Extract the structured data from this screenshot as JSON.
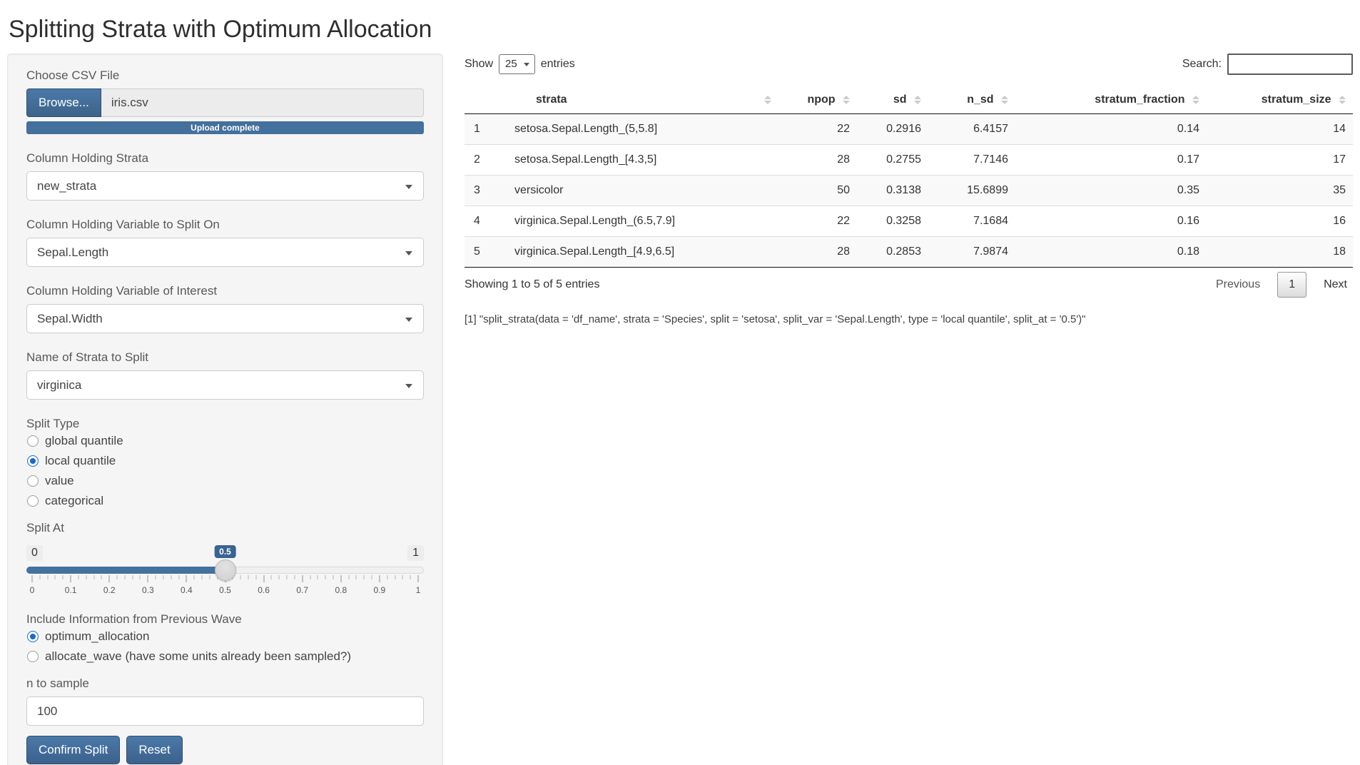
{
  "title": "Splitting Strata with Optimum Allocation",
  "colors": {
    "primary_blue": "#446e9b",
    "slider_fill_blue": "#44719f",
    "radio_selected_blue": "#1868d3",
    "table_stripe": "#f9f9f9"
  },
  "sidebar": {
    "file_input": {
      "label": "Choose CSV File",
      "browse_label": "Browse...",
      "filename": "iris.csv",
      "progress_text": "Upload complete"
    },
    "strata_select": {
      "label": "Column Holding Strata",
      "value": "new_strata"
    },
    "split_var_select": {
      "label": "Column Holding Variable to Split On",
      "value": "Sepal.Length"
    },
    "interest_select": {
      "label": "Column Holding Variable of Interest",
      "value": "Sepal.Width"
    },
    "strata_name_select": {
      "label": "Name of Strata to Split",
      "value": "virginica"
    },
    "split_type": {
      "label": "Split Type",
      "options": [
        "global quantile",
        "local quantile",
        "value",
        "categorical"
      ],
      "selected": "local quantile"
    },
    "split_at": {
      "label": "Split At",
      "min_label": "0",
      "max_label": "1",
      "value_label": "0.5",
      "value": 0.5,
      "tick_labels": [
        "0",
        "0.1",
        "0.2",
        "0.3",
        "0.4",
        "0.5",
        "0.6",
        "0.7",
        "0.8",
        "0.9",
        "1"
      ]
    },
    "previous_wave": {
      "label": "Include Information from Previous Wave",
      "options": [
        "optimum_allocation",
        "allocate_wave (have some units already been sampled?)"
      ],
      "selected": "optimum_allocation"
    },
    "n_to_sample": {
      "label": "n to sample",
      "value": "100"
    },
    "confirm_button": "Confirm Split",
    "reset_button": "Reset"
  },
  "table_controls": {
    "show_label": "Show",
    "page_length": "25",
    "entries_label": "entries",
    "search_label": "Search:",
    "search_value": ""
  },
  "table": {
    "columns": [
      "strata",
      "npop",
      "sd",
      "n_sd",
      "stratum_fraction",
      "stratum_size"
    ],
    "rows": [
      {
        "row_name": "1",
        "cells": [
          "setosa.Sepal.Length_(5,5.8]",
          "22",
          "0.2916",
          "6.4157",
          "0.14",
          "14"
        ]
      },
      {
        "row_name": "2",
        "cells": [
          "setosa.Sepal.Length_[4.3,5]",
          "28",
          "0.2755",
          "7.7146",
          "0.17",
          "17"
        ]
      },
      {
        "row_name": "3",
        "cells": [
          "versicolor",
          "50",
          "0.3138",
          "15.6899",
          "0.35",
          "35"
        ]
      },
      {
        "row_name": "4",
        "cells": [
          "virginica.Sepal.Length_(6.5,7.9]",
          "22",
          "0.3258",
          "7.1684",
          "0.16",
          "16"
        ]
      },
      {
        "row_name": "5",
        "cells": [
          "virginica.Sepal.Length_[4.9,6.5]",
          "28",
          "0.2853",
          "7.9874",
          "0.18",
          "18"
        ]
      }
    ],
    "info": "Showing 1 to 5 of 5 entries",
    "pagination": {
      "previous": "Previous",
      "current_page": "1",
      "next": "Next"
    }
  },
  "console_output": "[1] \"split_strata(data = 'df_name', strata = 'Species', split = 'setosa', split_var = 'Sepal.Length', type = 'local quantile', split_at = '0.5')\""
}
